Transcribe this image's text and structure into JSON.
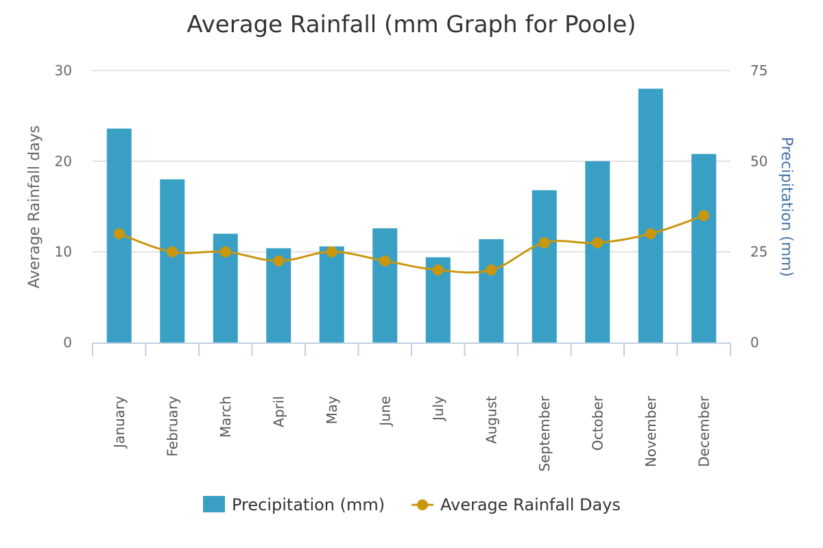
{
  "chart_data": {
    "type": "bar",
    "title": "Average Rainfall (mm Graph for Poole)",
    "categories": [
      "January",
      "February",
      "March",
      "April",
      "May",
      "June",
      "July",
      "August",
      "September",
      "October",
      "November",
      "December"
    ],
    "series": [
      {
        "name": "Precipitation (mm)",
        "type": "bar",
        "axis": "right",
        "values": [
          59,
          45,
          30,
          26,
          26.5,
          31.5,
          23.5,
          28.5,
          42,
          50,
          70,
          52
        ],
        "color": "#3a9fc4"
      },
      {
        "name": "Average Rainfall Days",
        "type": "line",
        "axis": "left",
        "values": [
          12,
          10,
          10,
          9,
          10,
          9,
          8,
          8,
          11,
          11,
          12,
          14
        ],
        "color": "#c9970d"
      }
    ],
    "yaxis_left": {
      "label": "Average Rainfall days",
      "range": [
        0,
        30
      ],
      "ticks": [
        "0",
        "10",
        "20",
        "30"
      ],
      "color": "#666666"
    },
    "yaxis_right": {
      "label": "Precipitation (mm)",
      "range": [
        0,
        75
      ],
      "ticks": [
        "0",
        "25",
        "50",
        "75"
      ],
      "color": "#4572a7"
    },
    "grid": true,
    "legend_position": "bottom-center",
    "colors": {
      "grid": "#d8d8d8",
      "axis": "#c0d0e0",
      "title": "#333333"
    }
  }
}
